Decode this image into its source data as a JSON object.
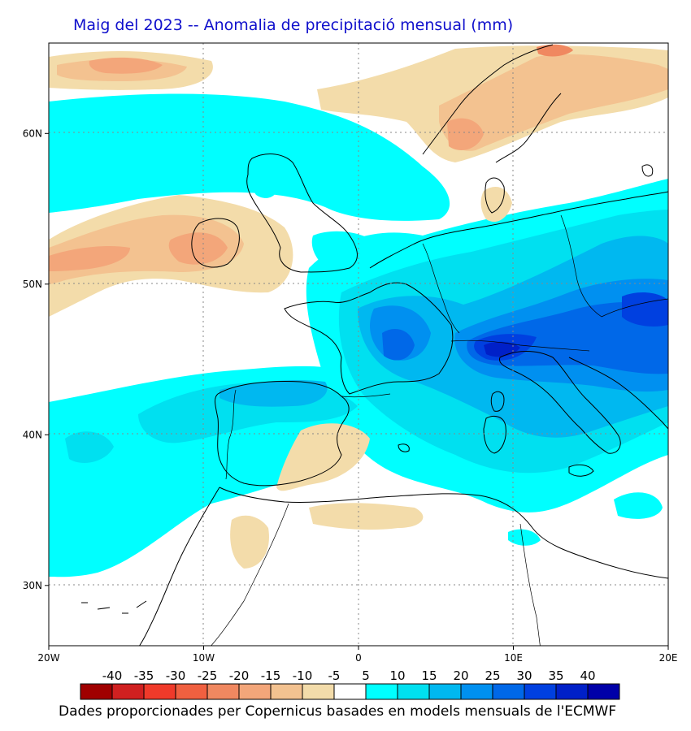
{
  "title": "Maig del 2023 -- Anomalia de precipitació mensual (mm)",
  "footer": "Dades proporcionades per Copernicus basades en models mensuals de l'ECMWF",
  "map": {
    "lat_labels": [
      "60N",
      "50N",
      "40N",
      "30N"
    ],
    "lat_values": [
      60,
      50,
      40,
      30
    ],
    "lon_labels": [
      "20W",
      "10W",
      "0",
      "10E",
      "20E"
    ],
    "lon_values": [
      -20,
      -10,
      0,
      10,
      20
    ],
    "lat_range": [
      26,
      66
    ],
    "lon_range": [
      -20,
      20
    ]
  },
  "colorbar": {
    "labels": [
      "-40",
      "-35",
      "-30",
      "-25",
      "-20",
      "-15",
      "-10",
      "-5",
      "5",
      "10",
      "15",
      "20",
      "25",
      "30",
      "35",
      "40"
    ],
    "colors": [
      "#a00000",
      "#d02020",
      "#f03a2a",
      "#f06040",
      "#f08860",
      "#f3a67a",
      "#f3c290",
      "#f3dcaa",
      "#ffffff",
      "#00ffff",
      "#00e0f0",
      "#00b8f0",
      "#0090f0",
      "#0068e8",
      "#0040e0",
      "#0020c8",
      "#0000a8"
    ]
  },
  "colors": {
    "dry1": "#f3dcaa",
    "dry2": "#f3c290",
    "dry3": "#f3a67a",
    "dry4": "#f08860",
    "wet1": "#00ffff",
    "wet2": "#00e0f0",
    "wet3": "#00b8f0",
    "wet4": "#0090f0",
    "wet5": "#0068e8",
    "wet6": "#0040e0",
    "wet7": "#0020c8"
  }
}
